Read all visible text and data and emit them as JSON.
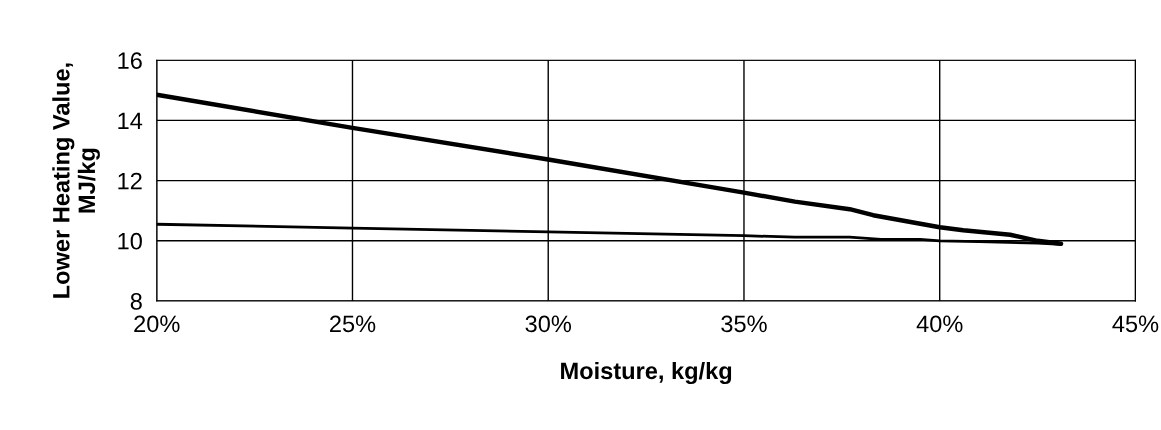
{
  "chart_data": {
    "type": "line",
    "xlabel": "Moisture, kg/kg",
    "ylabel": "Lower Heating Value,\nMJ/kg",
    "xlim": [
      20,
      45
    ],
    "xticks": [
      {
        "value": 20,
        "label": "20%"
      },
      {
        "value": 25,
        "label": "25%"
      },
      {
        "value": 30,
        "label": "30%"
      },
      {
        "value": 35,
        "label": "35%"
      },
      {
        "value": 40,
        "label": "40%"
      },
      {
        "value": 45,
        "label": "45%"
      }
    ],
    "ylim": [
      8,
      16
    ],
    "yticks": [
      8,
      10,
      12,
      14,
      16
    ],
    "grid": true,
    "series": [
      {
        "color": "#000000",
        "x": [
          20,
          25,
          30,
          35,
          36.3,
          37.7,
          38.3,
          40,
          40.6,
          41.8,
          42.5,
          43.1
        ],
        "values": [
          14.85,
          13.75,
          12.7,
          11.6,
          11.3,
          11.05,
          10.85,
          10.45,
          10.35,
          10.2,
          10.0,
          9.9
        ]
      },
      {
        "color": "#000000",
        "x": [
          20,
          25,
          30,
          35,
          36.3,
          37.7,
          38.5,
          39.5,
          40,
          41,
          42.5,
          43.1
        ],
        "values": [
          10.55,
          10.42,
          10.3,
          10.17,
          10.12,
          10.12,
          10.05,
          10.05,
          10.0,
          9.97,
          9.92,
          9.88
        ]
      }
    ]
  }
}
